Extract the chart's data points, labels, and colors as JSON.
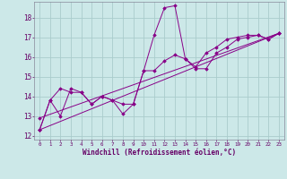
{
  "xlabel": "Windchill (Refroidissement éolien,°C)",
  "bg_color": "#cce8e8",
  "grid_color": "#aacccc",
  "line_color": "#880088",
  "xlim": [
    -0.5,
    23.5
  ],
  "ylim": [
    11.8,
    18.8
  ],
  "xticks": [
    0,
    1,
    2,
    3,
    4,
    5,
    6,
    7,
    8,
    9,
    10,
    11,
    12,
    13,
    14,
    15,
    16,
    17,
    18,
    19,
    20,
    21,
    22,
    23
  ],
  "yticks": [
    12,
    13,
    14,
    15,
    16,
    17,
    18
  ],
  "series1_x": [
    0,
    1,
    2,
    3,
    4,
    5,
    6,
    7,
    8,
    9,
    10,
    11,
    12,
    13,
    14,
    15,
    16,
    17,
    18,
    19,
    20,
    21,
    22,
    23
  ],
  "series1_y": [
    12.3,
    13.8,
    13.0,
    14.4,
    14.2,
    13.6,
    14.0,
    13.8,
    13.1,
    13.6,
    15.3,
    17.1,
    18.5,
    18.6,
    15.9,
    15.4,
    15.4,
    16.2,
    16.5,
    16.9,
    17.0,
    17.1,
    16.9,
    17.2
  ],
  "series2_x": [
    0,
    1,
    2,
    3,
    4,
    5,
    6,
    7,
    8,
    9,
    10,
    11,
    12,
    13,
    14,
    15,
    16,
    17,
    18,
    19,
    20,
    21,
    22,
    23
  ],
  "series2_y": [
    12.3,
    13.8,
    14.4,
    14.2,
    14.2,
    13.6,
    14.0,
    13.8,
    13.6,
    13.6,
    15.3,
    15.3,
    15.8,
    16.1,
    15.9,
    15.5,
    16.2,
    16.5,
    16.9,
    17.0,
    17.1,
    17.1,
    16.9,
    17.2
  ],
  "series3_x": [
    0,
    23
  ],
  "series3_y": [
    12.3,
    17.2
  ],
  "series4_x": [
    0,
    23
  ],
  "series4_y": [
    12.9,
    17.2
  ]
}
